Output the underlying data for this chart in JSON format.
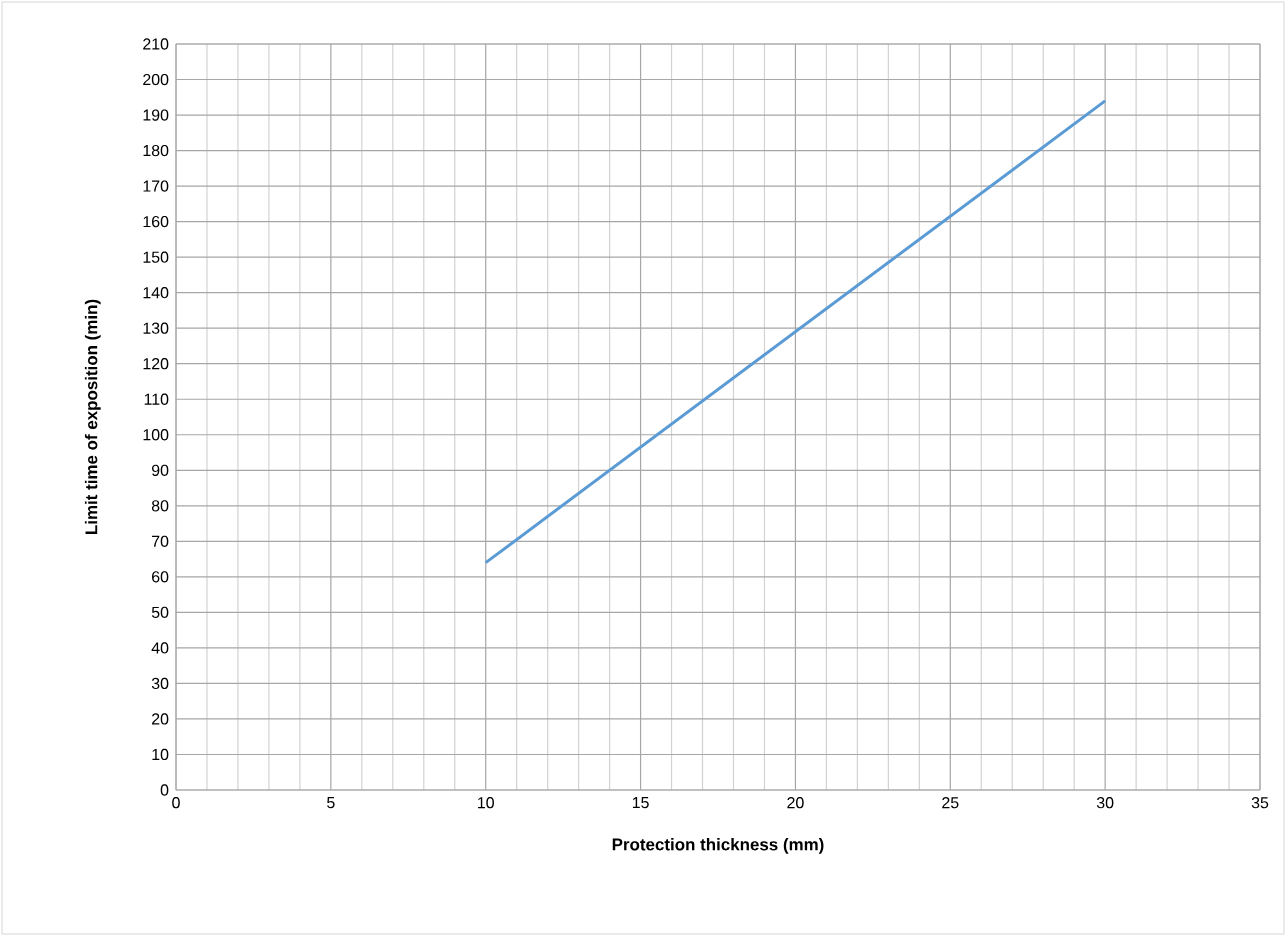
{
  "chart_data": {
    "type": "line",
    "xlabel": "Protection thickness (mm)",
    "ylabel": "Limit time of exposition (min)",
    "x": [
      10,
      30
    ],
    "values": [
      64,
      194
    ],
    "color": "#5b9bd5",
    "xlim": [
      0,
      35
    ],
    "xticks": [
      0,
      5,
      10,
      15,
      20,
      25,
      30,
      35
    ],
    "ylim": [
      0,
      210
    ],
    "yticks": [
      0,
      10,
      20,
      30,
      40,
      50,
      60,
      70,
      80,
      90,
      100,
      110,
      120,
      130,
      140,
      150,
      160,
      170,
      180,
      190,
      200,
      210
    ],
    "grid": true,
    "line_style": "solid",
    "marker": "none"
  }
}
